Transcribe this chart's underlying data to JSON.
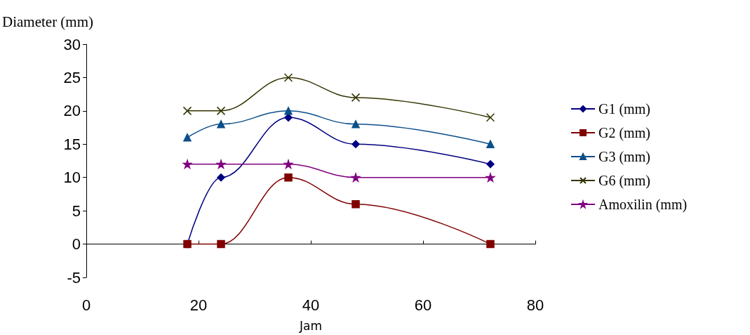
{
  "chart_data": {
    "type": "line",
    "ylabel": "Diameter (mm)",
    "xlabel": "Jam",
    "x": [
      18,
      24,
      36,
      48,
      72
    ],
    "series": [
      {
        "name": "G1 (mm)",
        "color": "#000080",
        "marker": "diamond",
        "values": [
          0,
          10,
          19,
          15,
          12
        ]
      },
      {
        "name": "G2 (mm)",
        "color": "#800000",
        "marker": "square",
        "values": [
          0,
          0,
          10,
          6,
          0
        ]
      },
      {
        "name": "G3 (mm)",
        "color": "#0b4f8a",
        "marker": "triangle",
        "values": [
          16,
          18,
          20,
          18,
          15
        ]
      },
      {
        "name": "G6 (mm)",
        "color": "#333300",
        "marker": "cross",
        "values": [
          20,
          20,
          25,
          22,
          19
        ]
      },
      {
        "name": "Amoxilin (mm)",
        "color": "#800080",
        "marker": "star",
        "values": [
          12,
          12,
          12,
          10,
          10
        ]
      }
    ],
    "xlim": [
      0,
      80
    ],
    "xticks": [
      0,
      20,
      40,
      60,
      80
    ],
    "ylim": [
      -5,
      30
    ],
    "yticks": [
      -5,
      0,
      5,
      10,
      15,
      20,
      25,
      30
    ],
    "legend": "right",
    "line_style": "solid"
  }
}
